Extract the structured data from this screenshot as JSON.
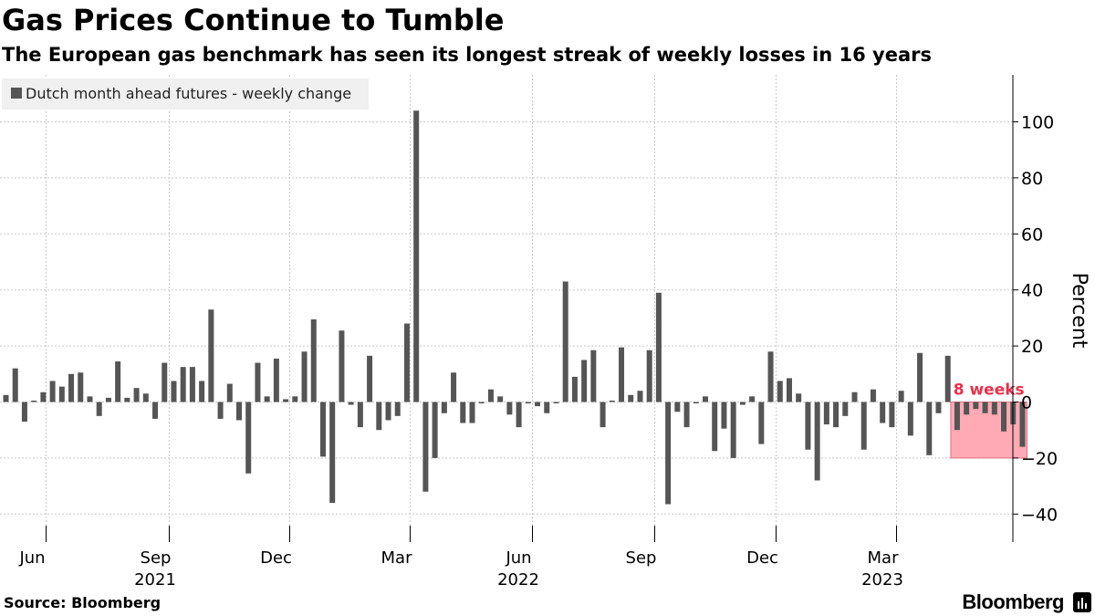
{
  "header": {
    "title": "Gas Prices Continue to Tumble",
    "subtitle": "The European gas benchmark has seen its longest streak of weekly losses in 16 years"
  },
  "footer": {
    "source": "Source: Bloomberg",
    "brand": "Bloomberg"
  },
  "colors": {
    "bar": "#555555",
    "highlight_fill": "#ffaab5",
    "highlight_stroke": "#e0707e",
    "highlight_text": "#e8304a",
    "grid": "#c8c8c8"
  },
  "chart_data": {
    "type": "bar",
    "title": "Gas Prices Continue to Tumble",
    "subtitle": "The European gas benchmark has seen its longest streak of weekly losses in 16 years",
    "ylabel": "Percent",
    "xlabel": "",
    "ylim": [
      -50,
      120
    ],
    "yticks": [
      -40,
      -20,
      0,
      20,
      40,
      60,
      80,
      100
    ],
    "grid": true,
    "legend": {
      "label": "Dutch month ahead futures - weekly change",
      "position": "top-left"
    },
    "x_start": "2021-04-30",
    "x_interval": "weekly",
    "x_ticks": [
      {
        "label": "Jun",
        "date": "2021-06-01"
      },
      {
        "label": "Sep",
        "date": "2021-09-01"
      },
      {
        "label": "Dec",
        "date": "2021-12-01"
      },
      {
        "label": "Mar",
        "date": "2022-03-01"
      },
      {
        "label": "Jun",
        "date": "2022-06-01"
      },
      {
        "label": "Sep",
        "date": "2022-09-01"
      },
      {
        "label": "Dec",
        "date": "2022-12-01"
      },
      {
        "label": "Mar",
        "date": "2023-03-01"
      }
    ],
    "year_labels": [
      {
        "label": "2021",
        "date": "2021-09-01"
      },
      {
        "label": "2022",
        "date": "2022-06-01"
      },
      {
        "label": "2023",
        "date": "2023-03-01"
      }
    ],
    "series": [
      {
        "name": "Dutch month ahead futures - weekly change",
        "values": [
          2.5,
          12,
          -7,
          0.5,
          3.5,
          7.5,
          5.5,
          10,
          10.5,
          2,
          -5,
          1.5,
          14.5,
          1.5,
          5,
          3,
          -6,
          14,
          7.5,
          12.5,
          12.5,
          7.5,
          33,
          -6,
          6.5,
          -6.5,
          -25.5,
          14,
          2,
          15.5,
          1,
          2,
          18,
          29.5,
          -19.5,
          -36,
          25.5,
          -1,
          -9,
          16.5,
          -10,
          -6.5,
          -5,
          28,
          104,
          -32,
          -20,
          -4,
          10.5,
          -7.5,
          -7.5,
          -0.5,
          4.5,
          2,
          -4.5,
          -9,
          -0.5,
          -1.5,
          -4,
          -0.5,
          43,
          9,
          15,
          18.5,
          -9,
          0.5,
          19.5,
          2.5,
          4,
          18.5,
          39,
          -36.5,
          -3.5,
          -9,
          -0.5,
          2,
          -17.5,
          -9.5,
          -20,
          -1,
          2,
          -15,
          18,
          7.5,
          8.5,
          3,
          -17,
          -28,
          -8,
          -9,
          -5,
          3.5,
          -17,
          4.5,
          -7.5,
          -9,
          4,
          -12,
          17.5,
          -19,
          -4,
          16.5,
          -10,
          -4.5,
          -2.5,
          -4,
          -4.5,
          -10.5,
          -8,
          -16
        ]
      }
    ],
    "annotations": [
      {
        "text": "8 weeks",
        "start_index": 102,
        "end_index": 109,
        "y_from": -20,
        "y_to": 0
      }
    ]
  }
}
